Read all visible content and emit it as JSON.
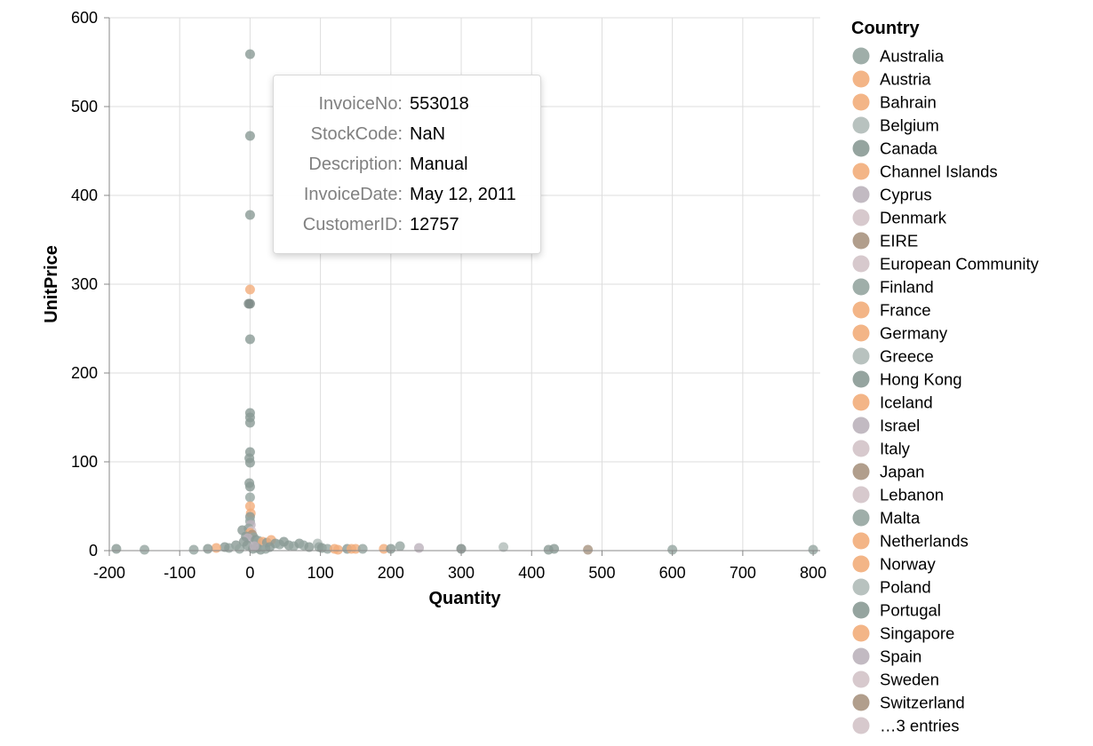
{
  "chart_data": {
    "type": "scatter",
    "xlabel": "Quantity",
    "ylabel": "UnitPrice",
    "xlim": [
      -200,
      810
    ],
    "ylim": [
      0,
      600
    ],
    "x_ticks": [
      "-200",
      "-100",
      "0",
      "100",
      "200",
      "300",
      "400",
      "500",
      "600",
      "700",
      "800"
    ],
    "y_ticks": [
      "0",
      "100",
      "200",
      "300",
      "400",
      "500",
      "600"
    ],
    "grid": true,
    "legend": {
      "title": "Country",
      "placement": "right",
      "entries": [
        {
          "name": "Australia",
          "color": "#95a5a0"
        },
        {
          "name": "Austria",
          "color": "#f2ad7a"
        },
        {
          "name": "Bahrain",
          "color": "#f2ad7a"
        },
        {
          "name": "Belgium",
          "color": "#b0bbb8"
        },
        {
          "name": "Canada",
          "color": "#8a9a95"
        },
        {
          "name": "Channel Islands",
          "color": "#f2ad7a"
        },
        {
          "name": "Cyprus",
          "color": "#bbb2bb"
        },
        {
          "name": "Denmark",
          "color": "#d3c3c8"
        },
        {
          "name": "EIRE",
          "color": "#a8937f"
        },
        {
          "name": "European Community",
          "color": "#d3c3c8"
        },
        {
          "name": "Finland",
          "color": "#95a5a0"
        },
        {
          "name": "France",
          "color": "#f2ad7a"
        },
        {
          "name": "Germany",
          "color": "#f2ad7a"
        },
        {
          "name": "Greece",
          "color": "#b0bbb8"
        },
        {
          "name": "Hong Kong",
          "color": "#8a9a95"
        },
        {
          "name": "Iceland",
          "color": "#f2ad7a"
        },
        {
          "name": "Israel",
          "color": "#bbb2bb"
        },
        {
          "name": "Italy",
          "color": "#d3c3c8"
        },
        {
          "name": "Japan",
          "color": "#a8937f"
        },
        {
          "name": "Lebanon",
          "color": "#d3c3c8"
        },
        {
          "name": "Malta",
          "color": "#95a5a0"
        },
        {
          "name": "Netherlands",
          "color": "#f2ad7a"
        },
        {
          "name": "Norway",
          "color": "#f2ad7a"
        },
        {
          "name": "Poland",
          "color": "#b0bbb8"
        },
        {
          "name": "Portugal",
          "color": "#8a9a95"
        },
        {
          "name": "Singapore",
          "color": "#f2ad7a"
        },
        {
          "name": "Spain",
          "color": "#bbb2bb"
        },
        {
          "name": "Sweden",
          "color": "#d3c3c8"
        },
        {
          "name": "Switzerland",
          "color": "#a8937f"
        },
        {
          "name": "…3 entries",
          "color": "#d3c3c8"
        }
      ]
    },
    "points": [
      {
        "x": 0,
        "y": 559,
        "c": "#8a9a95"
      },
      {
        "x": 0,
        "y": 467,
        "c": "#8a9a95"
      },
      {
        "x": 0,
        "y": 378,
        "c": "#8a9a95"
      },
      {
        "x": 0,
        "y": 294,
        "c": "#f2ad7a"
      },
      {
        "x": -2,
        "y": 278,
        "c": "#7d8a86"
      },
      {
        "x": 0,
        "y": 278,
        "c": "#7d8a86"
      },
      {
        "x": 0,
        "y": 238,
        "c": "#8a9a95"
      },
      {
        "x": 0,
        "y": 155,
        "c": "#8a9a95"
      },
      {
        "x": 0,
        "y": 150,
        "c": "#8a9a95"
      },
      {
        "x": 0,
        "y": 144,
        "c": "#8a9a95"
      },
      {
        "x": 0,
        "y": 111,
        "c": "#8a9a95"
      },
      {
        "x": -1,
        "y": 104,
        "c": "#8a9a95"
      },
      {
        "x": 0,
        "y": 99,
        "c": "#8a9a95"
      },
      {
        "x": -1,
        "y": 76,
        "c": "#8a9a95"
      },
      {
        "x": 0,
        "y": 72,
        "c": "#8a9a95"
      },
      {
        "x": 0,
        "y": 60,
        "c": "#95a5a0"
      },
      {
        "x": 0,
        "y": 50,
        "c": "#f2ad7a"
      },
      {
        "x": 1,
        "y": 42,
        "c": "#f2ad7a"
      },
      {
        "x": 0,
        "y": 38,
        "c": "#8a9a95"
      },
      {
        "x": 0,
        "y": 33,
        "c": "#95a5a0"
      },
      {
        "x": 1,
        "y": 29,
        "c": "#bbb2bb"
      },
      {
        "x": -2,
        "y": 25,
        "c": "#95a5a0"
      },
      {
        "x": 2,
        "y": 22,
        "c": "#d3c3c8"
      },
      {
        "x": -11,
        "y": 23,
        "c": "#8a9a95"
      },
      {
        "x": 0,
        "y": 20,
        "c": "#f2ad7a"
      },
      {
        "x": 3,
        "y": 18,
        "c": "#a8937f"
      },
      {
        "x": -6,
        "y": 16,
        "c": "#8a9a95"
      },
      {
        "x": 5,
        "y": 15,
        "c": "#95a5a0"
      },
      {
        "x": -3,
        "y": 14,
        "c": "#bbb2bb"
      },
      {
        "x": 8,
        "y": 12,
        "c": "#8a9a95"
      },
      {
        "x": 12,
        "y": 11,
        "c": "#95a5a0"
      },
      {
        "x": -9,
        "y": 10,
        "c": "#8a9a95"
      },
      {
        "x": 18,
        "y": 10,
        "c": "#f2ad7a"
      },
      {
        "x": 24,
        "y": 9,
        "c": "#8a9a95"
      },
      {
        "x": 30,
        "y": 12,
        "c": "#f2ad7a"
      },
      {
        "x": 36,
        "y": 8,
        "c": "#8a9a95"
      },
      {
        "x": 42,
        "y": 7,
        "c": "#95a5a0"
      },
      {
        "x": 48,
        "y": 10,
        "c": "#8a9a95"
      },
      {
        "x": 55,
        "y": 6,
        "c": "#8a9a95"
      },
      {
        "x": 62,
        "y": 5,
        "c": "#95a5a0"
      },
      {
        "x": 70,
        "y": 8,
        "c": "#8a9a95"
      },
      {
        "x": 76,
        "y": 6,
        "c": "#95a5a0"
      },
      {
        "x": 84,
        "y": 4,
        "c": "#8a9a95"
      },
      {
        "x": 96,
        "y": 8,
        "c": "#b0bbb8"
      },
      {
        "x": 98,
        "y": 4,
        "c": "#95a5a0"
      },
      {
        "x": 102,
        "y": 3,
        "c": "#8a9a95"
      },
      {
        "x": 110,
        "y": 2,
        "c": "#95a5a0"
      },
      {
        "x": 120,
        "y": 2,
        "c": "#f2ad7a"
      },
      {
        "x": 125,
        "y": 1,
        "c": "#f2ad7a"
      },
      {
        "x": 138,
        "y": 2,
        "c": "#8a9a95"
      },
      {
        "x": 144,
        "y": 2,
        "c": "#f2ad7a"
      },
      {
        "x": 150,
        "y": 2,
        "c": "#f2ad7a"
      },
      {
        "x": 160,
        "y": 2,
        "c": "#95a5a0"
      },
      {
        "x": 190,
        "y": 2,
        "c": "#f2ad7a"
      },
      {
        "x": 200,
        "y": 2,
        "c": "#8a9a95"
      },
      {
        "x": 213,
        "y": 5,
        "c": "#95a5a0"
      },
      {
        "x": 240,
        "y": 3,
        "c": "#bbb2bb"
      },
      {
        "x": 300,
        "y": 2,
        "c": "#7d8a86"
      },
      {
        "x": 360,
        "y": 4,
        "c": "#b0bbb8"
      },
      {
        "x": 424,
        "y": 1,
        "c": "#8a9a95"
      },
      {
        "x": 432,
        "y": 2,
        "c": "#8a9a95"
      },
      {
        "x": 480,
        "y": 1,
        "c": "#a8937f"
      },
      {
        "x": 600,
        "y": 1,
        "c": "#95a5a0"
      },
      {
        "x": 800,
        "y": 1,
        "c": "#95a5a0"
      },
      {
        "x": -20,
        "y": 6,
        "c": "#8a9a95"
      },
      {
        "x": -30,
        "y": 3,
        "c": "#95a5a0"
      },
      {
        "x": -36,
        "y": 4,
        "c": "#8a9a95"
      },
      {
        "x": -48,
        "y": 3,
        "c": "#f2ad7a"
      },
      {
        "x": -60,
        "y": 2,
        "c": "#8a9a95"
      },
      {
        "x": -80,
        "y": 1,
        "c": "#95a5a0"
      },
      {
        "x": -150,
        "y": 1,
        "c": "#95a5a0"
      },
      {
        "x": -190,
        "y": 2,
        "c": "#8a9a95"
      },
      {
        "x": 4,
        "y": 2,
        "c": "#8a9a95"
      },
      {
        "x": 10,
        "y": 3,
        "c": "#95a5a0"
      },
      {
        "x": 15,
        "y": 1,
        "c": "#8a9a95"
      },
      {
        "x": 22,
        "y": 2,
        "c": "#95a5a0"
      },
      {
        "x": 28,
        "y": 4,
        "c": "#8a9a95"
      },
      {
        "x": -15,
        "y": 2,
        "c": "#95a5a0"
      },
      {
        "x": -4,
        "y": 6,
        "c": "#8a9a95"
      },
      {
        "x": 6,
        "y": 5,
        "c": "#bbb2bb"
      }
    ]
  },
  "tooltip": {
    "rows": [
      {
        "key": "InvoiceNo:",
        "value": "553018"
      },
      {
        "key": "StockCode:",
        "value": "NaN"
      },
      {
        "key": "Description:",
        "value": "Manual"
      },
      {
        "key": "InvoiceDate:",
        "value": "May 12, 2011"
      },
      {
        "key": "CustomerID:",
        "value": "12757"
      }
    ]
  }
}
